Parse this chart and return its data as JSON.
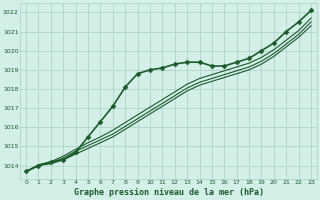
{
  "title": "Graphe pression niveau de la mer (hPa)",
  "bg_color": "#d4eee8",
  "grid_color": "#aacfc8",
  "line_color": "#1a5c2a",
  "xlim": [
    -0.5,
    23.5
  ],
  "ylim": [
    1013.3,
    1022.5
  ],
  "xticks": [
    0,
    1,
    2,
    3,
    4,
    5,
    6,
    7,
    8,
    9,
    10,
    11,
    12,
    13,
    14,
    15,
    16,
    17,
    18,
    19,
    20,
    21,
    22,
    23
  ],
  "yticks": [
    1014,
    1015,
    1016,
    1017,
    1018,
    1019,
    1020,
    1021,
    1022
  ],
  "series": [
    {
      "x": [
        0,
        1,
        2,
        3,
        4,
        5,
        6,
        7,
        8,
        9,
        10,
        11,
        12,
        13,
        14,
        15,
        16,
        17,
        18,
        19,
        20,
        21,
        22,
        23
      ],
      "y": [
        1013.7,
        1014.0,
        1014.2,
        1014.3,
        1014.7,
        1015.5,
        1016.3,
        1017.1,
        1018.1,
        1018.8,
        1019.0,
        1019.1,
        1019.3,
        1019.4,
        1019.4,
        1019.2,
        1019.2,
        1019.4,
        1019.6,
        1020.0,
        1020.4,
        1021.0,
        1021.5,
        1022.1
      ],
      "marker": "D",
      "lw": 1.2,
      "ms": 2.5
    },
    {
      "x": [
        0,
        1,
        2,
        3,
        4,
        5,
        6,
        7,
        8,
        9,
        10,
        11,
        12,
        13,
        14,
        15,
        16,
        17,
        18,
        19,
        20,
        21,
        22,
        23
      ],
      "y": [
        1013.7,
        1014.0,
        1014.1,
        1014.3,
        1014.6,
        1014.9,
        1015.2,
        1015.5,
        1015.9,
        1016.3,
        1016.7,
        1017.1,
        1017.5,
        1017.9,
        1018.2,
        1018.4,
        1018.6,
        1018.8,
        1019.0,
        1019.3,
        1019.7,
        1020.2,
        1020.7,
        1021.3
      ],
      "marker": null,
      "lw": 0.8,
      "ms": 0
    },
    {
      "x": [
        0,
        1,
        2,
        3,
        4,
        5,
        6,
        7,
        8,
        9,
        10,
        11,
        12,
        13,
        14,
        15,
        16,
        17,
        18,
        19,
        20,
        21,
        22,
        23
      ],
      "y": [
        1013.7,
        1014.0,
        1014.15,
        1014.4,
        1014.75,
        1015.05,
        1015.35,
        1015.65,
        1016.05,
        1016.45,
        1016.85,
        1017.25,
        1017.65,
        1018.05,
        1018.35,
        1018.55,
        1018.75,
        1018.95,
        1019.15,
        1019.45,
        1019.85,
        1020.35,
        1020.85,
        1021.5
      ],
      "marker": null,
      "lw": 0.8,
      "ms": 0
    },
    {
      "x": [
        0,
        1,
        2,
        3,
        4,
        5,
        6,
        7,
        8,
        9,
        10,
        11,
        12,
        13,
        14,
        15,
        16,
        17,
        18,
        19,
        20,
        21,
        22,
        23
      ],
      "y": [
        1013.7,
        1014.05,
        1014.2,
        1014.5,
        1014.85,
        1015.2,
        1015.5,
        1015.85,
        1016.25,
        1016.65,
        1017.05,
        1017.45,
        1017.85,
        1018.25,
        1018.55,
        1018.75,
        1018.95,
        1019.15,
        1019.35,
        1019.65,
        1020.05,
        1020.55,
        1021.05,
        1021.7
      ],
      "marker": null,
      "lw": 0.8,
      "ms": 0
    }
  ],
  "figsize": [
    3.2,
    2.0
  ],
  "dpi": 100
}
